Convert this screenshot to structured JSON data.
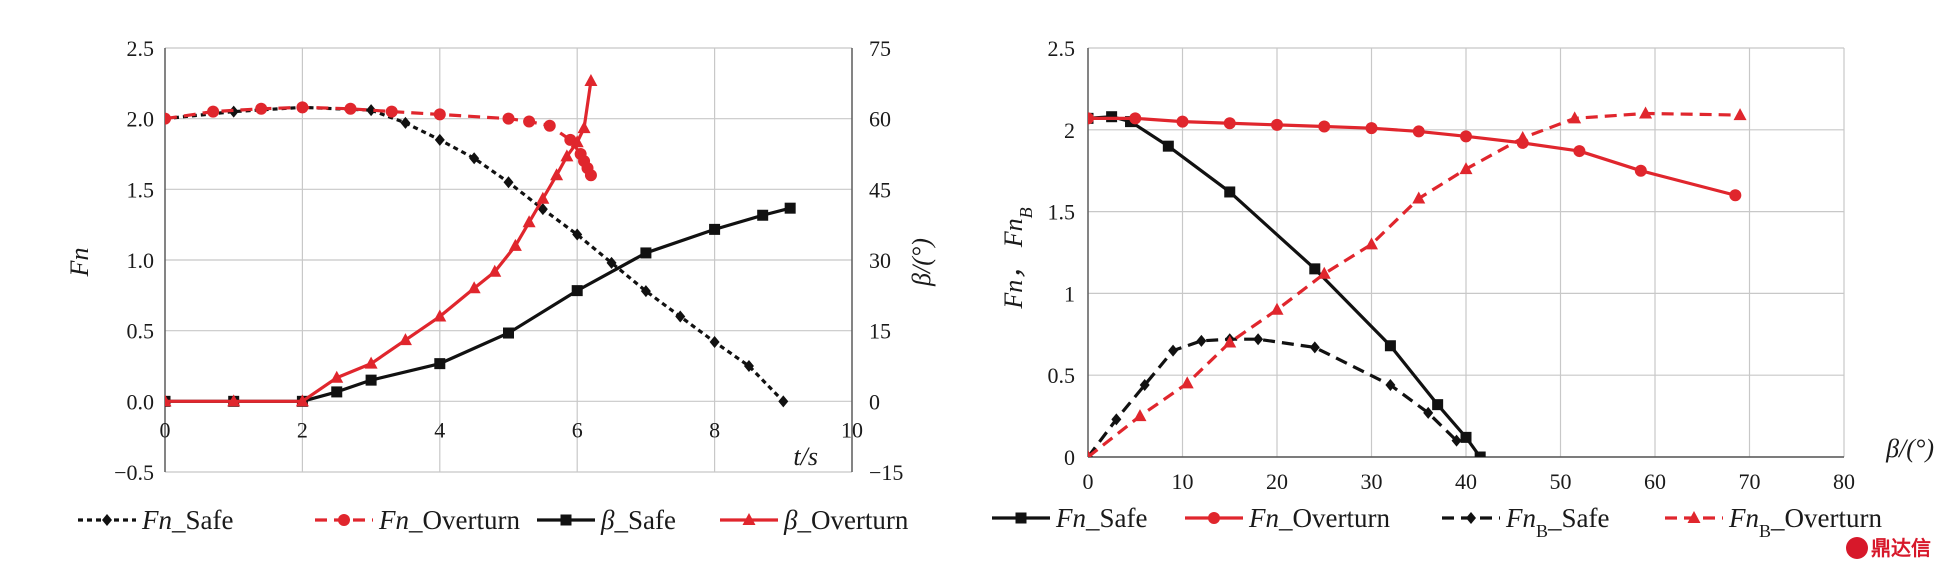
{
  "chart_data": [
    {
      "type": "line",
      "x_axis": {
        "label": "t/s",
        "range": [
          0,
          10
        ],
        "ticks": [
          "0",
          "2",
          "4",
          "6",
          "8",
          "10"
        ]
      },
      "y_left": {
        "label": "Fn",
        "range": [
          -0.5,
          2.5
        ],
        "ticks": [
          "−0.5",
          "0.0",
          "0.5",
          "1.0",
          "1.5",
          "2.0",
          "2.5"
        ]
      },
      "y_right": {
        "label": "β/(°)",
        "range": [
          -15,
          75
        ],
        "ticks": [
          "−15",
          "0",
          "15",
          "30",
          "45",
          "60",
          "75"
        ]
      },
      "grid": true,
      "legend_position": "bottom",
      "series": [
        {
          "name": "Fn_Safe",
          "name_italic": "Fn",
          "name_sub": "",
          "name_rest": "_Safe",
          "axis": "left",
          "color": "#111111",
          "dash": "dotted",
          "marker": "diamond",
          "x": [
            0,
            1,
            2,
            3,
            3.5,
            4,
            4.5,
            5,
            5.5,
            6,
            6.5,
            7,
            7.5,
            8,
            8.5,
            9
          ],
          "y": [
            2.0,
            2.05,
            2.08,
            2.06,
            1.97,
            1.85,
            1.72,
            1.55,
            1.36,
            1.18,
            0.98,
            0.78,
            0.6,
            0.42,
            0.25,
            0.0
          ]
        },
        {
          "name": "Fn_Overturn",
          "name_italic": "Fn",
          "name_sub": "",
          "name_rest": "_Overturn",
          "axis": "left",
          "color": "#e0262d",
          "dash": "dashed",
          "marker": "circle",
          "x": [
            0,
            0.7,
            1.4,
            2.0,
            2.7,
            3.3,
            4.0,
            5.0,
            5.3,
            5.6,
            5.9,
            6.05,
            6.1,
            6.15,
            6.2
          ],
          "y": [
            2.0,
            2.05,
            2.07,
            2.08,
            2.07,
            2.05,
            2.03,
            2.0,
            1.98,
            1.95,
            1.85,
            1.75,
            1.7,
            1.65,
            1.6
          ]
        },
        {
          "name": "β_Safe",
          "name_italic": "β",
          "name_sub": "",
          "name_rest": "_Safe",
          "axis": "right",
          "color": "#111111",
          "dash": "solid",
          "marker": "square",
          "x": [
            0,
            1,
            2,
            2.5,
            3,
            4,
            5,
            6,
            7,
            8,
            8.7,
            9.1
          ],
          "y": [
            0,
            0,
            0,
            2,
            4.5,
            8,
            14.5,
            23.5,
            31.5,
            36.5,
            39.5,
            41
          ]
        },
        {
          "name": "β_Overturn",
          "name_italic": "β",
          "name_sub": "",
          "name_rest": "_Overturn",
          "axis": "right",
          "color": "#e0262d",
          "dash": "solid",
          "marker": "triangle",
          "x": [
            0,
            1,
            2,
            2.5,
            3,
            3.5,
            4,
            4.5,
            4.8,
            5.1,
            5.3,
            5.5,
            5.7,
            5.85,
            6,
            6.1,
            6.2
          ],
          "y": [
            0,
            0,
            0,
            5,
            8,
            13,
            18,
            24,
            27.5,
            33,
            38,
            43,
            48,
            52,
            55,
            58,
            68
          ]
        }
      ]
    },
    {
      "type": "line",
      "x_axis": {
        "label": "β/(°)",
        "range": [
          0,
          80
        ],
        "ticks": [
          "0",
          "10",
          "20",
          "30",
          "40",
          "50",
          "60",
          "70",
          "80"
        ]
      },
      "y_left": {
        "label": "Fn， Fn",
        "label_sub": "B",
        "range": [
          0,
          2.5
        ],
        "ticks": [
          "0",
          "0.5",
          "1",
          "1.5",
          "2",
          "2.5"
        ]
      },
      "grid": true,
      "legend_position": "bottom",
      "series": [
        {
          "name": "Fn_Safe",
          "name_italic": "Fn",
          "name_sub": "",
          "name_rest": "_Safe",
          "color": "#111111",
          "dash": "solid",
          "marker": "square",
          "x": [
            0,
            2.5,
            4.5,
            8.5,
            15,
            24,
            32,
            37,
            40,
            41.5
          ],
          "y": [
            2.07,
            2.08,
            2.05,
            1.9,
            1.62,
            1.15,
            0.68,
            0.32,
            0.12,
            0.0
          ]
        },
        {
          "name": "Fn_Overturn",
          "name_italic": "Fn",
          "name_sub": "",
          "name_rest": "_Overturn",
          "color": "#e0262d",
          "dash": "solid",
          "marker": "circle",
          "x": [
            0,
            5,
            10,
            15,
            20,
            25,
            30,
            35,
            40,
            46,
            52,
            58.5,
            68.5
          ],
          "y": [
            2.07,
            2.07,
            2.05,
            2.04,
            2.03,
            2.02,
            2.01,
            1.99,
            1.96,
            1.92,
            1.87,
            1.75,
            1.6
          ]
        },
        {
          "name": "FnB_Safe",
          "name_italic": "Fn",
          "name_sub": "B",
          "name_rest": "_Safe",
          "color": "#111111",
          "dash": "dashed",
          "marker": "diamond",
          "x": [
            0,
            3,
            6,
            9,
            12,
            15,
            18,
            24,
            32,
            36,
            39
          ],
          "y": [
            0,
            0.23,
            0.44,
            0.65,
            0.71,
            0.72,
            0.72,
            0.67,
            0.44,
            0.27,
            0.1
          ]
        },
        {
          "name": "FnB_Overturn",
          "name_italic": "Fn",
          "name_sub": "B",
          "name_rest": "_Overturn",
          "color": "#e0262d",
          "dash": "dashed",
          "marker": "triangle",
          "x": [
            0,
            5.5,
            10.5,
            15,
            20,
            25,
            30,
            35,
            40,
            46,
            51.5,
            59,
            69
          ],
          "y": [
            0,
            0.25,
            0.45,
            0.7,
            0.9,
            1.12,
            1.3,
            1.58,
            1.76,
            1.95,
            2.07,
            2.1,
            2.09
          ]
        }
      ]
    }
  ],
  "watermark": "鼎达信"
}
